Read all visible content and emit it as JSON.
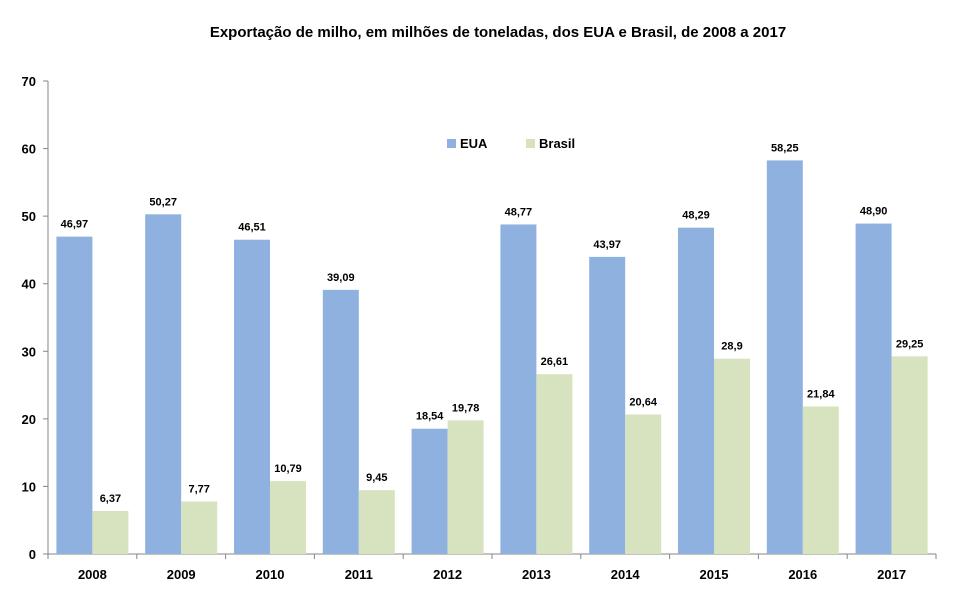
{
  "chart_data": {
    "type": "bar",
    "title": "Exportação de milho, em milhões de toneladas, dos EUA e Brasil, de 2008 a 2017",
    "categories": [
      "2008",
      "2009",
      "2010",
      "2011",
      "2012",
      "2013",
      "2014",
      "2015",
      "2016",
      "2017"
    ],
    "series": [
      {
        "name": "EUA",
        "color": "#8eb1e0",
        "values": [
          46.97,
          50.27,
          46.51,
          39.09,
          18.54,
          48.77,
          43.97,
          48.29,
          58.25,
          48.9
        ],
        "labels": [
          "46,97",
          "50,27",
          "46,51",
          "39,09",
          "18,54",
          "48,77",
          "43,97",
          "48,29",
          "58,25",
          "48,90"
        ]
      },
      {
        "name": "Brasil",
        "color": "#d7e3bf",
        "values": [
          6.37,
          7.77,
          10.79,
          9.45,
          19.78,
          26.61,
          20.64,
          28.9,
          21.84,
          29.25
        ],
        "labels": [
          "6,37",
          "7,77",
          "10,79",
          "9,45",
          "19,78",
          "26,61",
          "20,64",
          "28,9",
          "21,84",
          "29,25"
        ]
      }
    ],
    "ylim": [
      0,
      70
    ],
    "yticks": [
      0,
      10,
      20,
      30,
      40,
      50,
      60,
      70
    ],
    "grid": false,
    "legend_position": "top-center"
  }
}
